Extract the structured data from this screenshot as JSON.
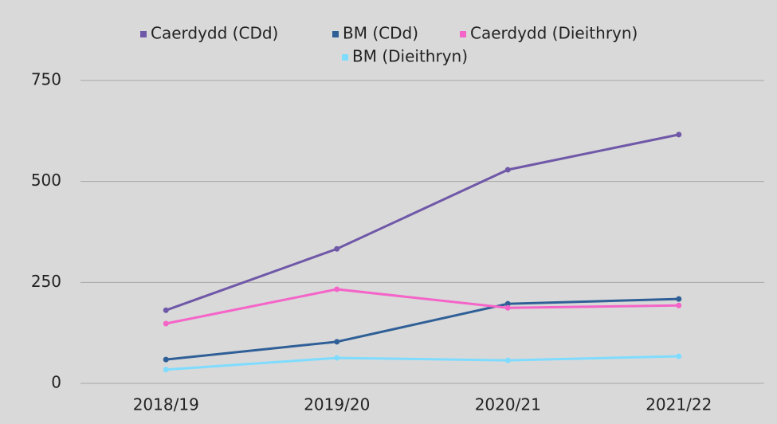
{
  "chart_data": {
    "type": "line",
    "categories": [
      "2018/19",
      "2019/20",
      "2020/21",
      "2021/22"
    ],
    "series": [
      {
        "name": "Caerdydd (CDd)",
        "color": "#6f58a8",
        "values": [
          181,
          333,
          529,
          616
        ]
      },
      {
        "name": "BM (CDd)",
        "color": "#2f5f97",
        "values": [
          59,
          103,
          197,
          209
        ]
      },
      {
        "name": "Caerdydd (Dieithryn)",
        "color": "#f564c8",
        "values": [
          148,
          233,
          187,
          193
        ]
      },
      {
        "name": "BM (Dieithryn)",
        "color": "#7fdcff",
        "values": [
          34,
          63,
          57,
          67
        ]
      }
    ],
    "ylim": [
      0,
      750
    ],
    "yticks": [
      0,
      250,
      500,
      750
    ],
    "grid": true,
    "legend": "top"
  }
}
